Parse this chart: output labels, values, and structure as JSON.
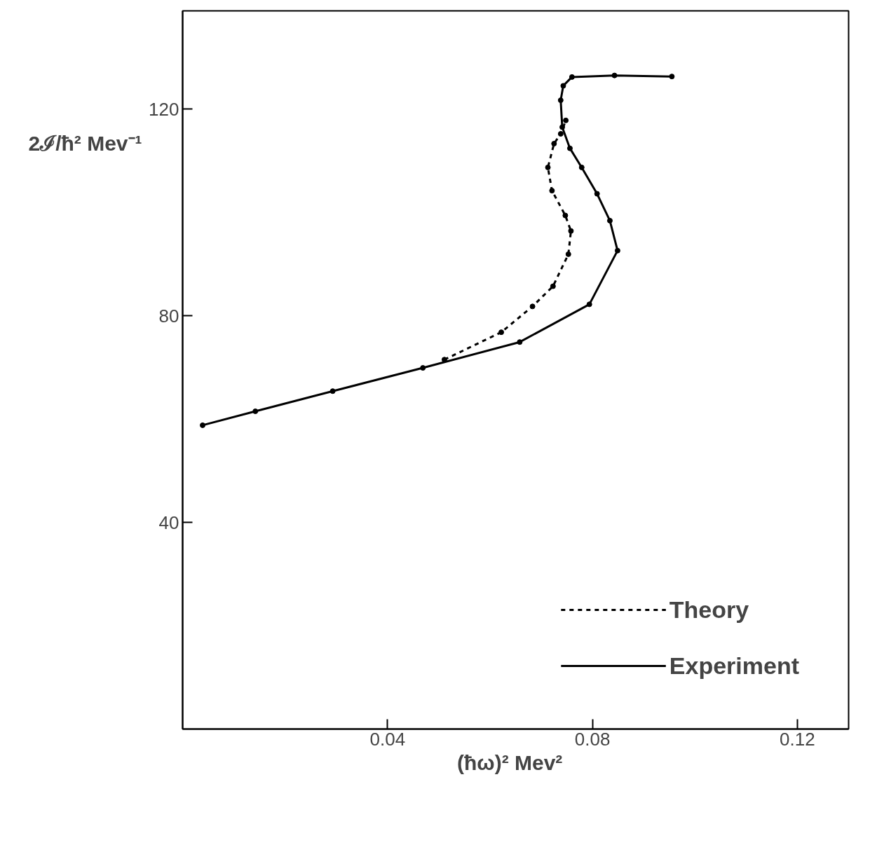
{
  "chart_data": {
    "type": "line",
    "xlabel": "(ħω)²   Mev²",
    "ylabel": "2ℐ/ħ²   Mev⁻¹",
    "xlim": [
      0,
      0.13
    ],
    "ylim": [
      0,
      139
    ],
    "xticks": [
      0.04,
      0.08,
      0.12
    ],
    "yticks": [
      40,
      80,
      120
    ],
    "grid": false,
    "legend": "bottom right",
    "marker": "circle",
    "series": [
      {
        "name": "Theory",
        "color": "#000000",
        "line_style": "dashed",
        "x": [
          0.0511,
          0.0622,
          0.0683,
          0.0723,
          0.0753,
          0.0758,
          0.0747,
          0.0721,
          0.0713,
          0.0725,
          0.0738,
          0.0748
        ],
        "values": [
          71.5,
          76.8,
          81.8,
          85.7,
          91.9,
          96.4,
          99.4,
          104.2,
          108.7,
          113.3,
          115.2,
          117.8
        ]
      },
      {
        "name": "Experiment",
        "color": "#000000",
        "line_style": "solid",
        "x": [
          0.0039,
          0.0142,
          0.0293,
          0.0469,
          0.0658,
          0.0794,
          0.0849,
          0.0834,
          0.0809,
          0.0779,
          0.0756,
          0.0741,
          0.0738,
          0.0743,
          0.076,
          0.0843,
          0.0955
        ],
        "values": [
          58.8,
          61.5,
          65.4,
          69.9,
          74.9,
          82.2,
          92.6,
          98.4,
          103.6,
          108.7,
          112.4,
          116.5,
          121.7,
          124.5,
          126.2,
          126.5,
          126.3
        ]
      }
    ]
  }
}
